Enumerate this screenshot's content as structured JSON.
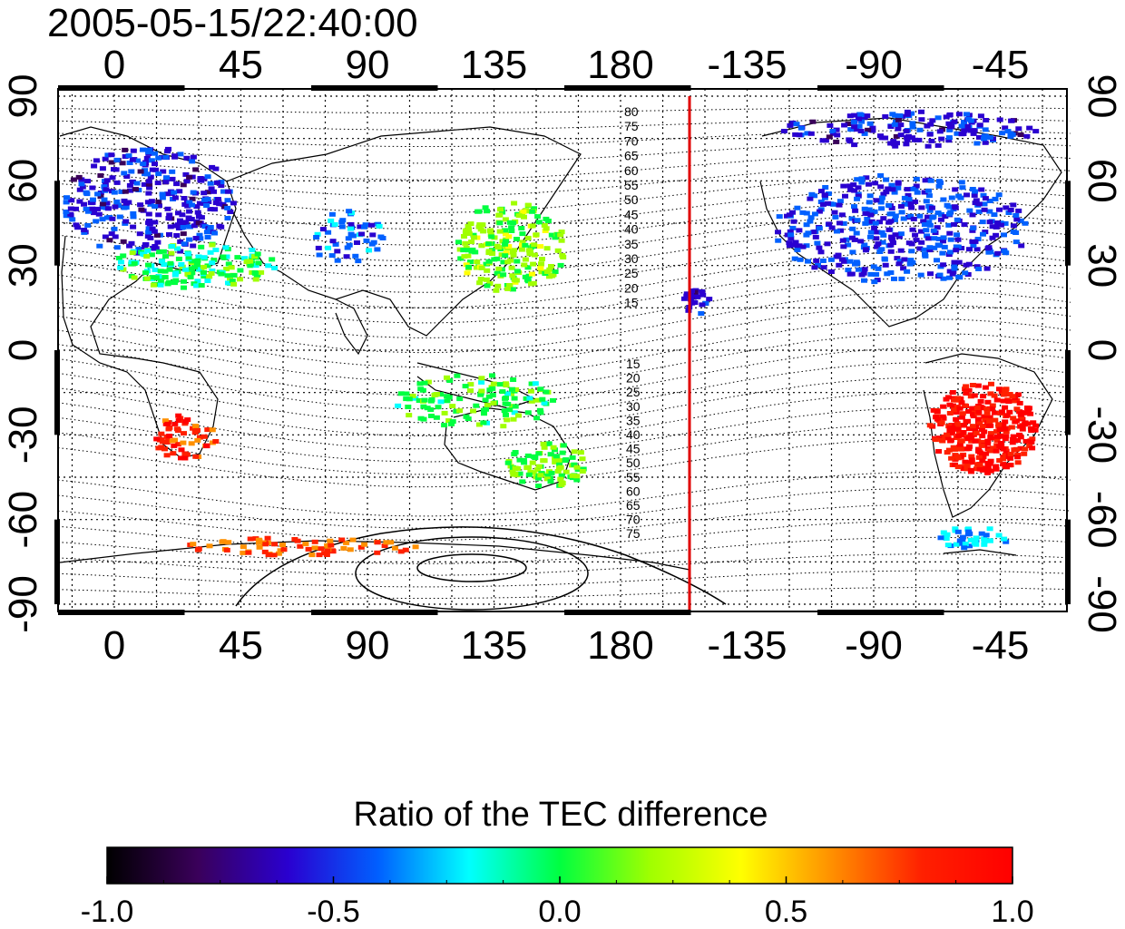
{
  "title": "2005-05-15/22:40:00",
  "x_tick_labels": [
    "0",
    "45",
    "90",
    "135",
    "180",
    "-135",
    "-90",
    "-45"
  ],
  "y_tick_labels": [
    "90",
    "60",
    "30",
    "0",
    "-30",
    "-60",
    "-90"
  ],
  "contour_labels_north": [
    "80",
    "75",
    "70",
    "65",
    "60",
    "55",
    "50",
    "45",
    "40",
    "35",
    "30",
    "25",
    "20",
    "15"
  ],
  "contour_labels_south": [
    "15",
    "20",
    "25",
    "30",
    "35",
    "40",
    "45",
    "50",
    "55",
    "60",
    "65",
    "70",
    "75"
  ],
  "terminator_color": "#e00000",
  "colorbar": {
    "title": "Ratio of the TEC difference",
    "ticks": [
      "-1.0",
      "-0.5",
      "0.0",
      "0.5",
      "1.0"
    ],
    "range": [
      -1.0,
      1.0
    ],
    "colors": [
      "#000000",
      "#3a005a",
      "#2a00d0",
      "#0060ff",
      "#00ffff",
      "#00ff40",
      "#a0ff00",
      "#ffff00",
      "#ff9000",
      "#ff2000",
      "#ff0000"
    ]
  },
  "map_meta": {
    "projection": "equirectangular",
    "longitude_center": 180,
    "latitude_range": [
      -90,
      90
    ],
    "grid": "dotted every 15 degrees"
  }
}
